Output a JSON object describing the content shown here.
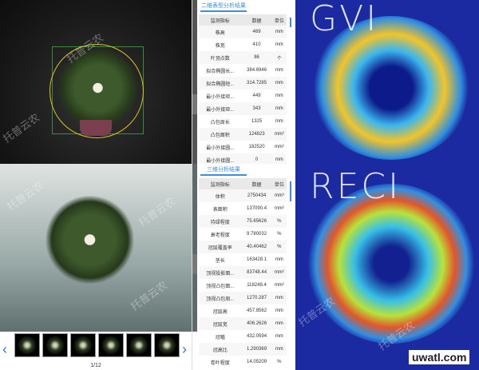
{
  "watermark": "托普云农",
  "panel2d": {
    "tab": "二维表型分析结果",
    "headers": [
      "监测指标",
      "数据",
      "单位"
    ],
    "rows": [
      [
        "株高",
        "469",
        "mm"
      ],
      [
        "株宽",
        "410",
        "mm"
      ],
      [
        "叶顶点数",
        "86",
        "个"
      ],
      [
        "拟合椭圆长...",
        "384.6946",
        "mm"
      ],
      [
        "拟合椭圆短...",
        "314.7285",
        "mm"
      ],
      [
        "最小外接矩...",
        "449",
        "mm"
      ],
      [
        "最小外接矩...",
        "343",
        "mm"
      ],
      [
        "凸包周长",
        "1325",
        "mm"
      ],
      [
        "凸包面积",
        "124823",
        "mm²"
      ],
      [
        "最小外接圆...",
        "182520",
        "mm²"
      ],
      [
        "最小外接圆...",
        "0",
        "mm"
      ]
    ]
  },
  "panel3d": {
    "tab": "三维分析结果",
    "headers": [
      "监测指标",
      "数据",
      "单位"
    ],
    "rows": [
      [
        "体积",
        "2750434",
        "mm³"
      ],
      [
        "表面积",
        "137090.4",
        "mm²"
      ],
      [
        "持绿程度",
        "75.65626",
        "%"
      ],
      [
        "衰老程度",
        "9.780032",
        "%"
      ],
      [
        "冠层覆盖率",
        "40.40462",
        "%"
      ],
      [
        "茎长",
        "163428.1",
        "mm"
      ],
      [
        "顶视投影面...",
        "83748.44",
        "mm²"
      ],
      [
        "顶视凸包面...",
        "118248.4",
        "mm²"
      ],
      [
        "顶视凸包周...",
        "1270.287",
        "mm"
      ],
      [
        "冠层高",
        "457.8562",
        "mm"
      ],
      [
        "冠层宽",
        "406.2626",
        "mm"
      ],
      [
        "冠幅",
        "432.0594",
        "mm"
      ],
      [
        "冠高比",
        "1.290369",
        "mm"
      ],
      [
        "卷叶程度",
        "14.05209",
        "%"
      ]
    ]
  },
  "gallery": {
    "page": "1/12",
    "prev_icon": "chevron-left-icon",
    "next_icon": "chevron-right-icon"
  },
  "index_labels": {
    "top": "GVI",
    "bottom": "RECI"
  },
  "site_mark": "uwatl.com",
  "colors": {
    "accent": "#3a8ee6",
    "falsecolor_bg": "#1b2aa0"
  }
}
